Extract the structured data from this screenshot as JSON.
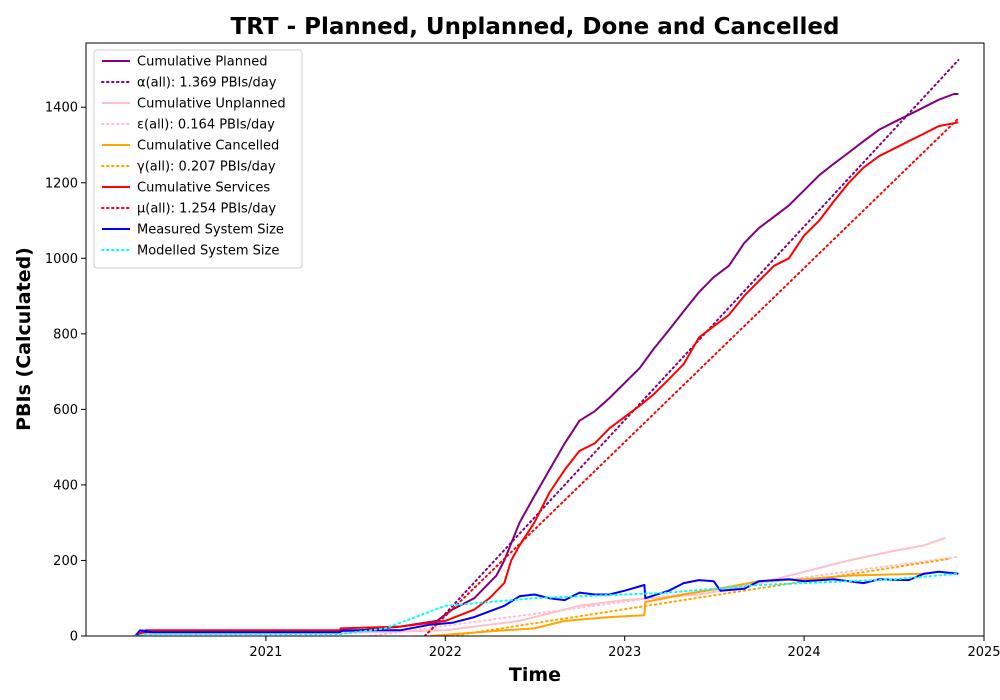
{
  "chart_data": {
    "type": "line",
    "title": "TRT - Planned, Unplanned, Done  and Cancelled",
    "xlabel": "Time",
    "ylabel": "PBIs (Calculated)",
    "xlim": [
      "2020-01-01",
      "2025-01-01"
    ],
    "ylim": [
      0,
      1570
    ],
    "x_ticks": [
      {
        "label": "2021",
        "value": "2021-01-01"
      },
      {
        "label": "2022",
        "value": "2022-01-01"
      },
      {
        "label": "2023",
        "value": "2023-01-01"
      },
      {
        "label": "2024",
        "value": "2024-01-01"
      },
      {
        "label": "2025",
        "value": "2025-01-01"
      }
    ],
    "y_ticks": [
      0,
      200,
      400,
      600,
      800,
      1000,
      1200,
      1400
    ],
    "grid": false,
    "legend_position": "top-left",
    "series": [
      {
        "name": "Cumulative Planned",
        "color": "#800080",
        "style": "solid",
        "points": [
          [
            "2020-04-10",
            0
          ],
          [
            "2020-05-01",
            10
          ],
          [
            "2021-06-01",
            10
          ],
          [
            "2021-10-01",
            25
          ],
          [
            "2021-12-15",
            40
          ],
          [
            "2022-01-15",
            70
          ],
          [
            "2022-03-01",
            100
          ],
          [
            "2022-04-15",
            160
          ],
          [
            "2022-05-01",
            200
          ],
          [
            "2022-06-01",
            300
          ],
          [
            "2022-07-01",
            370
          ],
          [
            "2022-08-01",
            440
          ],
          [
            "2022-09-01",
            510
          ],
          [
            "2022-10-01",
            570
          ],
          [
            "2022-11-01",
            595
          ],
          [
            "2022-12-01",
            630
          ],
          [
            "2023-01-01",
            670
          ],
          [
            "2023-02-01",
            710
          ],
          [
            "2023-03-01",
            760
          ],
          [
            "2023-04-01",
            810
          ],
          [
            "2023-05-01",
            860
          ],
          [
            "2023-06-01",
            910
          ],
          [
            "2023-07-01",
            950
          ],
          [
            "2023-08-01",
            980
          ],
          [
            "2023-09-01",
            1040
          ],
          [
            "2023-10-01",
            1080
          ],
          [
            "2023-11-01",
            1110
          ],
          [
            "2023-12-01",
            1140
          ],
          [
            "2024-01-01",
            1180
          ],
          [
            "2024-02-01",
            1220
          ],
          [
            "2024-03-01",
            1250
          ],
          [
            "2024-04-01",
            1280
          ],
          [
            "2024-05-01",
            1310
          ],
          [
            "2024-06-01",
            1340
          ],
          [
            "2024-07-01",
            1360
          ],
          [
            "2024-08-01",
            1380
          ],
          [
            "2024-09-01",
            1400
          ],
          [
            "2024-10-01",
            1420
          ],
          [
            "2024-11-01",
            1435
          ],
          [
            "2024-11-10",
            1435
          ]
        ]
      },
      {
        "name": "α(all): 1.369 PBIs/day",
        "color": "#800080",
        "style": "dotted",
        "points": [
          [
            "2021-11-20",
            0
          ],
          [
            "2024-11-10",
            1525
          ]
        ]
      },
      {
        "name": "Cumulative Unplanned",
        "color": "#ffc0cb",
        "style": "solid",
        "points": [
          [
            "2020-04-10",
            0
          ],
          [
            "2020-05-01",
            5
          ],
          [
            "2021-06-01",
            8
          ],
          [
            "2022-01-01",
            15
          ],
          [
            "2022-06-01",
            40
          ],
          [
            "2022-10-01",
            80
          ],
          [
            "2023-01-01",
            95
          ],
          [
            "2023-06-01",
            110
          ],
          [
            "2023-09-01",
            130
          ],
          [
            "2024-01-01",
            170
          ],
          [
            "2024-04-01",
            200
          ],
          [
            "2024-07-01",
            225
          ],
          [
            "2024-09-01",
            240
          ],
          [
            "2024-10-15",
            260
          ]
        ]
      },
      {
        "name": "ε(all): 0.164 PBIs/day",
        "color": "#ffc0cb",
        "style": "dotted",
        "points": [
          [
            "2021-08-01",
            0
          ],
          [
            "2024-11-10",
            210
          ]
        ]
      },
      {
        "name": "Cumulative Cancelled",
        "color": "#ffa500",
        "style": "solid",
        "points": [
          [
            "2021-12-01",
            0
          ],
          [
            "2022-05-01",
            15
          ],
          [
            "2022-07-01",
            20
          ],
          [
            "2022-09-01",
            40
          ],
          [
            "2022-12-01",
            50
          ],
          [
            "2023-02-10",
            55
          ],
          [
            "2023-02-12",
            90
          ],
          [
            "2023-05-01",
            110
          ],
          [
            "2023-08-01",
            130
          ],
          [
            "2023-10-01",
            145
          ],
          [
            "2024-01-01",
            150
          ],
          [
            "2024-04-01",
            160
          ],
          [
            "2024-07-01",
            163
          ],
          [
            "2024-09-01",
            165
          ]
        ]
      },
      {
        "name": "γ(all): 0.207 PBIs/day",
        "color": "#ffa500",
        "style": "dotted",
        "points": [
          [
            "2022-01-15",
            0
          ],
          [
            "2024-10-25",
            205
          ]
        ]
      },
      {
        "name": "Cumulative Services",
        "color": "#ff0000",
        "style": "solid",
        "points": [
          [
            "2020-04-10",
            0
          ],
          [
            "2020-05-01",
            15
          ],
          [
            "2021-06-01",
            15
          ],
          [
            "2021-06-02",
            20
          ],
          [
            "2021-10-01",
            25
          ],
          [
            "2022-01-01",
            40
          ],
          [
            "2022-03-01",
            70
          ],
          [
            "2022-04-01",
            100
          ],
          [
            "2022-05-01",
            140
          ],
          [
            "2022-05-15",
            200
          ],
          [
            "2022-06-01",
            240
          ],
          [
            "2022-07-01",
            300
          ],
          [
            "2022-08-01",
            380
          ],
          [
            "2022-09-01",
            440
          ],
          [
            "2022-10-01",
            490
          ],
          [
            "2022-11-01",
            510
          ],
          [
            "2022-12-01",
            550
          ],
          [
            "2023-01-01",
            580
          ],
          [
            "2023-02-01",
            610
          ],
          [
            "2023-03-01",
            640
          ],
          [
            "2023-04-01",
            680
          ],
          [
            "2023-05-01",
            720
          ],
          [
            "2023-06-01",
            790
          ],
          [
            "2023-07-01",
            820
          ],
          [
            "2023-08-01",
            850
          ],
          [
            "2023-09-01",
            900
          ],
          [
            "2023-10-01",
            940
          ],
          [
            "2023-11-01",
            980
          ],
          [
            "2023-12-01",
            1000
          ],
          [
            "2024-01-01",
            1060
          ],
          [
            "2024-02-01",
            1100
          ],
          [
            "2024-03-01",
            1150
          ],
          [
            "2024-04-01",
            1200
          ],
          [
            "2024-05-01",
            1240
          ],
          [
            "2024-06-01",
            1270
          ],
          [
            "2024-07-01",
            1290
          ],
          [
            "2024-08-01",
            1310
          ],
          [
            "2024-09-01",
            1330
          ],
          [
            "2024-10-01",
            1350
          ],
          [
            "2024-11-10",
            1360
          ]
        ]
      },
      {
        "name": "μ(all): 1.254 PBIs/day",
        "color": "#ff0000",
        "style": "dotted",
        "points": [
          [
            "2021-11-20",
            0
          ],
          [
            "2024-11-10",
            1370
          ]
        ]
      },
      {
        "name": "Measured System Size",
        "color": "#0000ff",
        "style": "solid",
        "points": [
          [
            "2020-04-10",
            0
          ],
          [
            "2020-04-20",
            15
          ],
          [
            "2020-05-15",
            10
          ],
          [
            "2021-06-01",
            10
          ],
          [
            "2021-06-05",
            15
          ],
          [
            "2021-10-01",
            15
          ],
          [
            "2021-12-01",
            30
          ],
          [
            "2022-01-15",
            35
          ],
          [
            "2022-03-01",
            50
          ],
          [
            "2022-05-01",
            80
          ],
          [
            "2022-06-01",
            105
          ],
          [
            "2022-07-01",
            110
          ],
          [
            "2022-08-01",
            100
          ],
          [
            "2022-09-01",
            95
          ],
          [
            "2022-10-01",
            115
          ],
          [
            "2022-11-01",
            110
          ],
          [
            "2022-12-01",
            110
          ],
          [
            "2023-01-01",
            120
          ],
          [
            "2023-02-10",
            135
          ],
          [
            "2023-02-12",
            100
          ],
          [
            "2023-04-01",
            120
          ],
          [
            "2023-05-01",
            140
          ],
          [
            "2023-06-01",
            148
          ],
          [
            "2023-07-01",
            145
          ],
          [
            "2023-07-15",
            120
          ],
          [
            "2023-09-01",
            125
          ],
          [
            "2023-10-01",
            145
          ],
          [
            "2023-12-01",
            150
          ],
          [
            "2024-01-01",
            145
          ],
          [
            "2024-03-01",
            150
          ],
          [
            "2024-05-01",
            140
          ],
          [
            "2024-06-01",
            150
          ],
          [
            "2024-08-01",
            148
          ],
          [
            "2024-09-01",
            165
          ],
          [
            "2024-10-01",
            170
          ],
          [
            "2024-11-10",
            165
          ]
        ]
      },
      {
        "name": "Modelled System Size",
        "color": "#00ffff",
        "style": "dotted",
        "points": [
          [
            "2020-04-10",
            0
          ],
          [
            "2020-05-01",
            5
          ],
          [
            "2021-06-01",
            5
          ],
          [
            "2021-09-01",
            20
          ],
          [
            "2021-11-01",
            50
          ],
          [
            "2022-01-01",
            80
          ],
          [
            "2022-04-01",
            90
          ],
          [
            "2022-07-01",
            100
          ],
          [
            "2022-10-01",
            105
          ],
          [
            "2023-01-01",
            110
          ],
          [
            "2023-04-01",
            115
          ],
          [
            "2023-07-01",
            125
          ],
          [
            "2023-10-01",
            135
          ],
          [
            "2024-01-01",
            140
          ],
          [
            "2024-04-01",
            145
          ],
          [
            "2024-07-01",
            150
          ],
          [
            "2024-11-10",
            165
          ]
        ]
      }
    ]
  }
}
